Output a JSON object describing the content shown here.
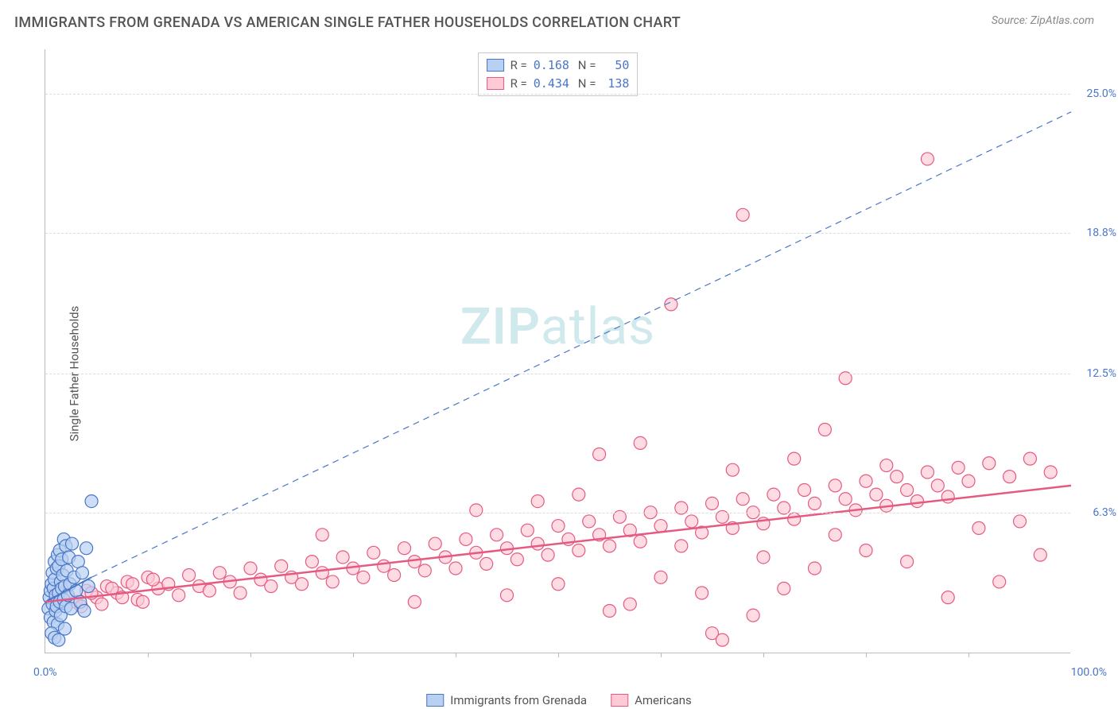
{
  "header": {
    "title": "IMMIGRANTS FROM GRENADA VS AMERICAN SINGLE FATHER HOUSEHOLDS CORRELATION CHART",
    "source_prefix": "Source: ",
    "source": "ZipAtlas.com"
  },
  "ylabel": "Single Father Households",
  "watermark": {
    "a": "ZIP",
    "b": "atlas"
  },
  "legend_top": {
    "rows": [
      {
        "swatch": "blue",
        "r_label": "R =",
        "r": "0.168",
        "n_label": "N =",
        "n": "50"
      },
      {
        "swatch": "pink",
        "r_label": "R =",
        "r": "0.434",
        "n_label": "N =",
        "n": "138"
      }
    ]
  },
  "legend_bottom": {
    "items": [
      {
        "swatch": "blue",
        "label": "Immigrants from Grenada"
      },
      {
        "swatch": "pink",
        "label": "Americans"
      }
    ]
  },
  "axes": {
    "x_min_label": "0.0%",
    "x_max_label": "100.0%",
    "xlim": [
      0,
      100
    ],
    "ylim": [
      0,
      27
    ],
    "xtick_step": 10,
    "y_ticks": [
      {
        "v": 6.3,
        "label": "6.3%"
      },
      {
        "v": 12.5,
        "label": "12.5%"
      },
      {
        "v": 18.8,
        "label": "18.8%"
      },
      {
        "v": 25.0,
        "label": "25.0%"
      }
    ]
  },
  "colors": {
    "blue_fill": "#b8d0f2",
    "blue_stroke": "#4a76c7",
    "pink_fill": "#ffc9d6",
    "pink_stroke": "#e55a80",
    "grid": "#dcdcdc",
    "axis": "#bbbbbb",
    "text": "#555555"
  },
  "marker_radius": 8,
  "series": {
    "blue": {
      "trend": {
        "x1": 0,
        "y1": 2.3,
        "x2": 4.5,
        "y2": 3.4
      },
      "trend_extrapolate": {
        "x1": 4.5,
        "y1": 3.4,
        "x2": 100,
        "y2": 24.2
      },
      "points": [
        [
          0.3,
          2.0
        ],
        [
          0.4,
          2.5
        ],
        [
          0.5,
          1.6
        ],
        [
          0.5,
          2.8
        ],
        [
          0.6,
          3.1
        ],
        [
          0.7,
          2.2
        ],
        [
          0.7,
          3.6
        ],
        [
          0.8,
          1.4
        ],
        [
          0.8,
          2.9
        ],
        [
          0.9,
          3.3
        ],
        [
          0.9,
          4.1
        ],
        [
          1.0,
          1.9
        ],
        [
          1.0,
          2.6
        ],
        [
          1.1,
          3.8
        ],
        [
          1.1,
          2.1
        ],
        [
          1.2,
          4.4
        ],
        [
          1.2,
          1.3
        ],
        [
          1.3,
          2.7
        ],
        [
          1.3,
          3.9
        ],
        [
          1.4,
          2.3
        ],
        [
          1.4,
          4.6
        ],
        [
          1.5,
          3.2
        ],
        [
          1.5,
          1.7
        ],
        [
          1.6,
          2.9
        ],
        [
          1.6,
          4.2
        ],
        [
          1.7,
          3.5
        ],
        [
          1.8,
          2.4
        ],
        [
          1.8,
          5.1
        ],
        [
          1.9,
          3.0
        ],
        [
          2.0,
          2.1
        ],
        [
          2.0,
          4.8
        ],
        [
          2.1,
          3.7
        ],
        [
          2.2,
          2.6
        ],
        [
          2.3,
          4.3
        ],
        [
          2.4,
          3.1
        ],
        [
          2.5,
          2.0
        ],
        [
          2.6,
          4.9
        ],
        [
          2.8,
          3.4
        ],
        [
          3.0,
          2.8
        ],
        [
          3.2,
          4.1
        ],
        [
          3.4,
          2.3
        ],
        [
          3.6,
          3.6
        ],
        [
          3.8,
          1.9
        ],
        [
          4.0,
          4.7
        ],
        [
          4.2,
          3.0
        ],
        [
          0.6,
          0.9
        ],
        [
          0.9,
          0.7
        ],
        [
          1.3,
          0.6
        ],
        [
          1.9,
          1.1
        ],
        [
          4.5,
          6.8
        ]
      ]
    },
    "pink": {
      "trend": {
        "x1": 0,
        "y1": 2.3,
        "x2": 100,
        "y2": 7.5
      },
      "points": [
        [
          1.5,
          2.4
        ],
        [
          2.0,
          2.6
        ],
        [
          3.0,
          2.3
        ],
        [
          4.0,
          2.8
        ],
        [
          5.0,
          2.5
        ],
        [
          6.0,
          3.0
        ],
        [
          7.0,
          2.7
        ],
        [
          8.0,
          3.2
        ],
        [
          9.0,
          2.4
        ],
        [
          10.0,
          3.4
        ],
        [
          11.0,
          2.9
        ],
        [
          12.0,
          3.1
        ],
        [
          13.0,
          2.6
        ],
        [
          14.0,
          3.5
        ],
        [
          15.0,
          3.0
        ],
        [
          16.0,
          2.8
        ],
        [
          17.0,
          3.6
        ],
        [
          18.0,
          3.2
        ],
        [
          19.0,
          2.7
        ],
        [
          20.0,
          3.8
        ],
        [
          21.0,
          3.3
        ],
        [
          22.0,
          3.0
        ],
        [
          23.0,
          3.9
        ],
        [
          24.0,
          3.4
        ],
        [
          25.0,
          3.1
        ],
        [
          26.0,
          4.1
        ],
        [
          27.0,
          3.6
        ],
        [
          27.0,
          5.3
        ],
        [
          28.0,
          3.2
        ],
        [
          29.0,
          4.3
        ],
        [
          30.0,
          3.8
        ],
        [
          31.0,
          3.4
        ],
        [
          32.0,
          4.5
        ],
        [
          33.0,
          3.9
        ],
        [
          34.0,
          3.5
        ],
        [
          35.0,
          4.7
        ],
        [
          36.0,
          4.1
        ],
        [
          36.0,
          2.3
        ],
        [
          37.0,
          3.7
        ],
        [
          38.0,
          4.9
        ],
        [
          39.0,
          4.3
        ],
        [
          40.0,
          3.8
        ],
        [
          41.0,
          5.1
        ],
        [
          42.0,
          4.5
        ],
        [
          42.0,
          6.4
        ],
        [
          43.0,
          4.0
        ],
        [
          44.0,
          5.3
        ],
        [
          45.0,
          4.7
        ],
        [
          45.0,
          2.6
        ],
        [
          46.0,
          4.2
        ],
        [
          47.0,
          5.5
        ],
        [
          48.0,
          6.8
        ],
        [
          48.0,
          4.9
        ],
        [
          49.0,
          4.4
        ],
        [
          50.0,
          5.7
        ],
        [
          50.0,
          3.1
        ],
        [
          51.0,
          5.1
        ],
        [
          52.0,
          4.6
        ],
        [
          52.0,
          7.1
        ],
        [
          53.0,
          5.9
        ],
        [
          54.0,
          5.3
        ],
        [
          54.0,
          8.9
        ],
        [
          55.0,
          4.8
        ],
        [
          55.0,
          1.9
        ],
        [
          56.0,
          6.1
        ],
        [
          57.0,
          5.5
        ],
        [
          57.0,
          2.2
        ],
        [
          58.0,
          5.0
        ],
        [
          58.0,
          9.4
        ],
        [
          59.0,
          6.3
        ],
        [
          60.0,
          5.7
        ],
        [
          60.0,
          3.4
        ],
        [
          61.0,
          15.6
        ],
        [
          62.0,
          6.5
        ],
        [
          62.0,
          4.8
        ],
        [
          63.0,
          5.9
        ],
        [
          64.0,
          5.4
        ],
        [
          64.0,
          2.7
        ],
        [
          65.0,
          6.7
        ],
        [
          65.0,
          0.9
        ],
        [
          66.0,
          6.1
        ],
        [
          66.0,
          0.6
        ],
        [
          67.0,
          5.6
        ],
        [
          67.0,
          8.2
        ],
        [
          68.0,
          6.9
        ],
        [
          68.0,
          19.6
        ],
        [
          69.0,
          6.3
        ],
        [
          69.0,
          1.7
        ],
        [
          70.0,
          5.8
        ],
        [
          70.0,
          4.3
        ],
        [
          71.0,
          7.1
        ],
        [
          72.0,
          6.5
        ],
        [
          72.0,
          2.9
        ],
        [
          73.0,
          6.0
        ],
        [
          73.0,
          8.7
        ],
        [
          74.0,
          7.3
        ],
        [
          75.0,
          6.7
        ],
        [
          75.0,
          3.8
        ],
        [
          76.0,
          10.0
        ],
        [
          77.0,
          7.5
        ],
        [
          77.0,
          5.3
        ],
        [
          78.0,
          6.9
        ],
        [
          78.0,
          12.3
        ],
        [
          79.0,
          6.4
        ],
        [
          80.0,
          7.7
        ],
        [
          80.0,
          4.6
        ],
        [
          81.0,
          7.1
        ],
        [
          82.0,
          6.6
        ],
        [
          82.0,
          8.4
        ],
        [
          83.0,
          7.9
        ],
        [
          84.0,
          7.3
        ],
        [
          84.0,
          4.1
        ],
        [
          85.0,
          6.8
        ],
        [
          86.0,
          8.1
        ],
        [
          86.0,
          22.1
        ],
        [
          87.0,
          7.5
        ],
        [
          88.0,
          7.0
        ],
        [
          88.0,
          2.5
        ],
        [
          89.0,
          8.3
        ],
        [
          90.0,
          7.7
        ],
        [
          91.0,
          5.6
        ],
        [
          92.0,
          8.5
        ],
        [
          93.0,
          3.2
        ],
        [
          94.0,
          7.9
        ],
        [
          95.0,
          5.9
        ],
        [
          96.0,
          8.7
        ],
        [
          97.0,
          4.4
        ],
        [
          98.0,
          8.1
        ],
        [
          3.5,
          2.1
        ],
        [
          4.5,
          2.7
        ],
        [
          5.5,
          2.2
        ],
        [
          6.5,
          2.9
        ],
        [
          7.5,
          2.5
        ],
        [
          8.5,
          3.1
        ],
        [
          9.5,
          2.3
        ],
        [
          10.5,
          3.3
        ]
      ]
    }
  }
}
